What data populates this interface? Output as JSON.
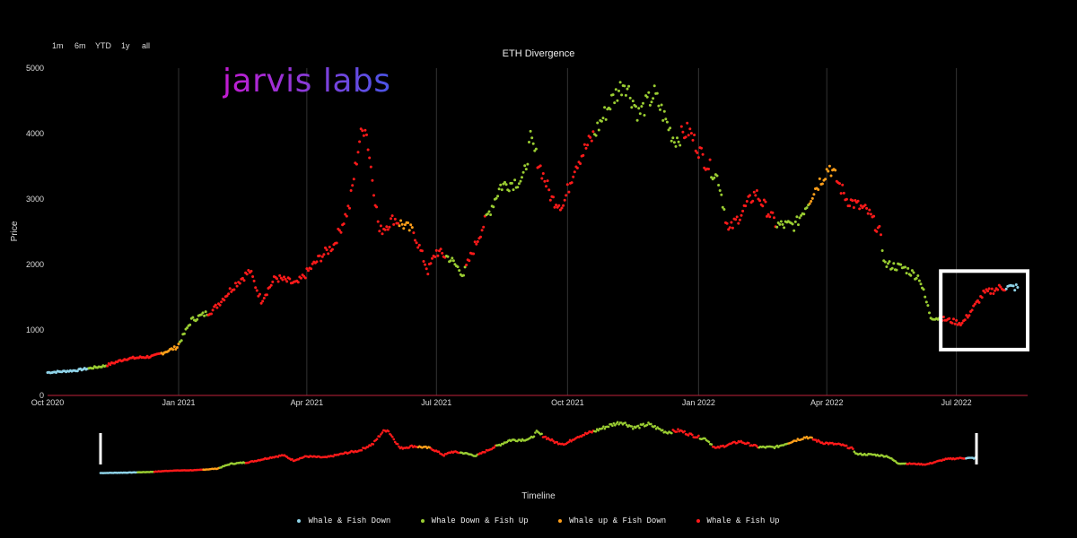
{
  "range_selector": [
    "1m",
    "6m",
    "YTD",
    "1y",
    "all"
  ],
  "logo_text": "jarvis labs",
  "colors": {
    "whale_fish_down": "#8fd3e8",
    "whale_down_fish_up": "#9acd32",
    "whale_up_fish_down": "#ff9f1a",
    "whale_fish_up": "#ff1a1a",
    "axis_line": "#c0223a",
    "grid": "#333333",
    "highlight_box": "#ffffff"
  },
  "chart_data": {
    "type": "scatter",
    "title": "ETH Divergence",
    "ylabel": "Price",
    "xlabel": "Timeline",
    "ylim": [
      0,
      5000
    ],
    "xlim": [
      "2020-10-01",
      "2022-08-20"
    ],
    "y_ticks": [
      0,
      1000,
      2000,
      3000,
      4000,
      5000
    ],
    "x_ticks": [
      {
        "date": "2020-10-01",
        "label": "Oct 2020"
      },
      {
        "date": "2021-01-01",
        "label": "Jan 2021"
      },
      {
        "date": "2021-04-01",
        "label": "Apr 2021"
      },
      {
        "date": "2021-07-01",
        "label": "Jul 2021"
      },
      {
        "date": "2021-10-01",
        "label": "Oct 2021"
      },
      {
        "date": "2022-01-01",
        "label": "Jan 2022"
      },
      {
        "date": "2022-04-01",
        "label": "Apr 2022"
      },
      {
        "date": "2022-07-01",
        "label": "Jul 2022"
      }
    ],
    "price_path": [
      [
        "2020-10-01",
        350
      ],
      [
        "2020-10-20",
        380
      ],
      [
        "2020-11-10",
        450
      ],
      [
        "2020-11-25",
        560
      ],
      [
        "2020-12-15",
        600
      ],
      [
        "2020-12-31",
        740
      ],
      [
        "2021-01-10",
        1150
      ],
      [
        "2021-01-25",
        1300
      ],
      [
        "2021-02-10",
        1700
      ],
      [
        "2021-02-20",
        1900
      ],
      [
        "2021-02-28",
        1450
      ],
      [
        "2021-03-10",
        1800
      ],
      [
        "2021-03-25",
        1700
      ],
      [
        "2021-04-10",
        2100
      ],
      [
        "2021-04-20",
        2300
      ],
      [
        "2021-05-01",
        2900
      ],
      [
        "2021-05-08",
        3900
      ],
      [
        "2021-05-12",
        4150
      ],
      [
        "2021-05-22",
        2500
      ],
      [
        "2021-06-01",
        2700
      ],
      [
        "2021-06-15",
        2500
      ],
      [
        "2021-06-25",
        1900
      ],
      [
        "2021-07-01",
        2200
      ],
      [
        "2021-07-10",
        2100
      ],
      [
        "2021-07-20",
        1850
      ],
      [
        "2021-08-01",
        2500
      ],
      [
        "2021-08-15",
        3200
      ],
      [
        "2021-08-31",
        3300
      ],
      [
        "2021-09-05",
        3900
      ],
      [
        "2021-09-20",
        3000
      ],
      [
        "2021-09-28",
        2900
      ],
      [
        "2021-10-06",
        3500
      ],
      [
        "2021-10-20",
        4000
      ],
      [
        "2021-11-01",
        4500
      ],
      [
        "2021-11-10",
        4800
      ],
      [
        "2021-11-20",
        4300
      ],
      [
        "2021-12-01",
        4600
      ],
      [
        "2021-12-15",
        3900
      ],
      [
        "2021-12-25",
        4050
      ],
      [
        "2022-01-05",
        3600
      ],
      [
        "2022-01-15",
        3300
      ],
      [
        "2022-01-22",
        2500
      ],
      [
        "2022-02-10",
        3100
      ],
      [
        "2022-02-25",
        2600
      ],
      [
        "2022-03-10",
        2600
      ],
      [
        "2022-03-25",
        3200
      ],
      [
        "2022-04-03",
        3500
      ],
      [
        "2022-04-15",
        3000
      ],
      [
        "2022-04-30",
        2800
      ],
      [
        "2022-05-08",
        2500
      ],
      [
        "2022-05-12",
        2000
      ],
      [
        "2022-05-25",
        1950
      ],
      [
        "2022-06-05",
        1800
      ],
      [
        "2022-06-13",
        1200
      ],
      [
        "2022-06-25",
        1150
      ],
      [
        "2022-07-05",
        1100
      ],
      [
        "2022-07-20",
        1550
      ],
      [
        "2022-08-01",
        1650
      ],
      [
        "2022-08-13",
        1650
      ]
    ],
    "category_segments": [
      {
        "start": "2020-10-01",
        "end": "2020-10-30",
        "cat": "whale_fish_down"
      },
      {
        "start": "2020-10-30",
        "end": "2020-11-12",
        "cat": "whale_down_fish_up"
      },
      {
        "start": "2020-11-12",
        "end": "2020-12-20",
        "cat": "whale_fish_up"
      },
      {
        "start": "2020-12-20",
        "end": "2021-01-02",
        "cat": "whale_up_fish_down"
      },
      {
        "start": "2021-01-02",
        "end": "2021-01-22",
        "cat": "whale_down_fish_up"
      },
      {
        "start": "2021-01-22",
        "end": "2021-05-15",
        "cat": "whale_fish_up"
      },
      {
        "start": "2021-05-15",
        "end": "2021-06-05",
        "cat": "whale_fish_up"
      },
      {
        "start": "2021-06-05",
        "end": "2021-06-15",
        "cat": "whale_up_fish_down"
      },
      {
        "start": "2021-06-15",
        "end": "2021-07-08",
        "cat": "whale_fish_up"
      },
      {
        "start": "2021-07-08",
        "end": "2021-07-22",
        "cat": "whale_down_fish_up"
      },
      {
        "start": "2021-07-22",
        "end": "2021-08-05",
        "cat": "whale_fish_up"
      },
      {
        "start": "2021-08-05",
        "end": "2021-09-10",
        "cat": "whale_down_fish_up"
      },
      {
        "start": "2021-09-10",
        "end": "2021-10-20",
        "cat": "whale_fish_up"
      },
      {
        "start": "2021-10-20",
        "end": "2021-12-20",
        "cat": "whale_down_fish_up"
      },
      {
        "start": "2021-12-20",
        "end": "2022-01-10",
        "cat": "whale_fish_up"
      },
      {
        "start": "2022-01-10",
        "end": "2022-01-20",
        "cat": "whale_down_fish_up"
      },
      {
        "start": "2022-01-20",
        "end": "2022-02-25",
        "cat": "whale_fish_up"
      },
      {
        "start": "2022-02-25",
        "end": "2022-03-20",
        "cat": "whale_down_fish_up"
      },
      {
        "start": "2022-03-20",
        "end": "2022-04-08",
        "cat": "whale_up_fish_down"
      },
      {
        "start": "2022-04-08",
        "end": "2022-05-10",
        "cat": "whale_fish_up"
      },
      {
        "start": "2022-05-10",
        "end": "2022-06-20",
        "cat": "whale_down_fish_up"
      },
      {
        "start": "2022-06-20",
        "end": "2022-08-05",
        "cat": "whale_fish_up"
      },
      {
        "start": "2022-08-05",
        "end": "2022-08-13",
        "cat": "whale_fish_down"
      }
    ],
    "highlight_range": {
      "start": "2022-06-20",
      "end": "2022-08-20",
      "ymin": 700,
      "ymax": 1900
    },
    "legend": [
      {
        "key": "whale_fish_down",
        "label": "Whale & Fish Down"
      },
      {
        "key": "whale_down_fish_up",
        "label": "Whale Down & Fish Up"
      },
      {
        "key": "whale_up_fish_down",
        "label": "Whale up & Fish Down"
      },
      {
        "key": "whale_fish_up",
        "label": "Whale & Fish Up"
      }
    ],
    "legend_placement": "bottom",
    "grid": "vertical"
  }
}
